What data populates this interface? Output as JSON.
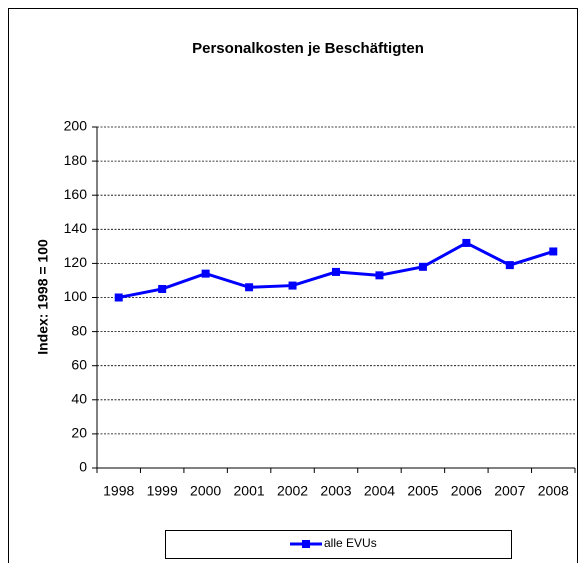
{
  "chart_data": {
    "type": "line",
    "title": "Personalkosten je Beschäftigten",
    "ylabel": "Index:  1998 = 100",
    "categories": [
      "1998",
      "1999",
      "2000",
      "2001",
      "2002",
      "2003",
      "2004",
      "2005",
      "2006",
      "2007",
      "2008"
    ],
    "series": [
      {
        "name": "alle EVUs",
        "color": "#0000ff",
        "values": [
          100,
          105,
          114,
          106,
          107,
          115,
          113,
          118,
          132,
          119,
          127
        ]
      }
    ],
    "ylim": [
      0,
      200
    ],
    "yticks": [
      0,
      20,
      40,
      60,
      80,
      100,
      120,
      140,
      160,
      180,
      200
    ],
    "grid": true,
    "legend": "bottom"
  }
}
